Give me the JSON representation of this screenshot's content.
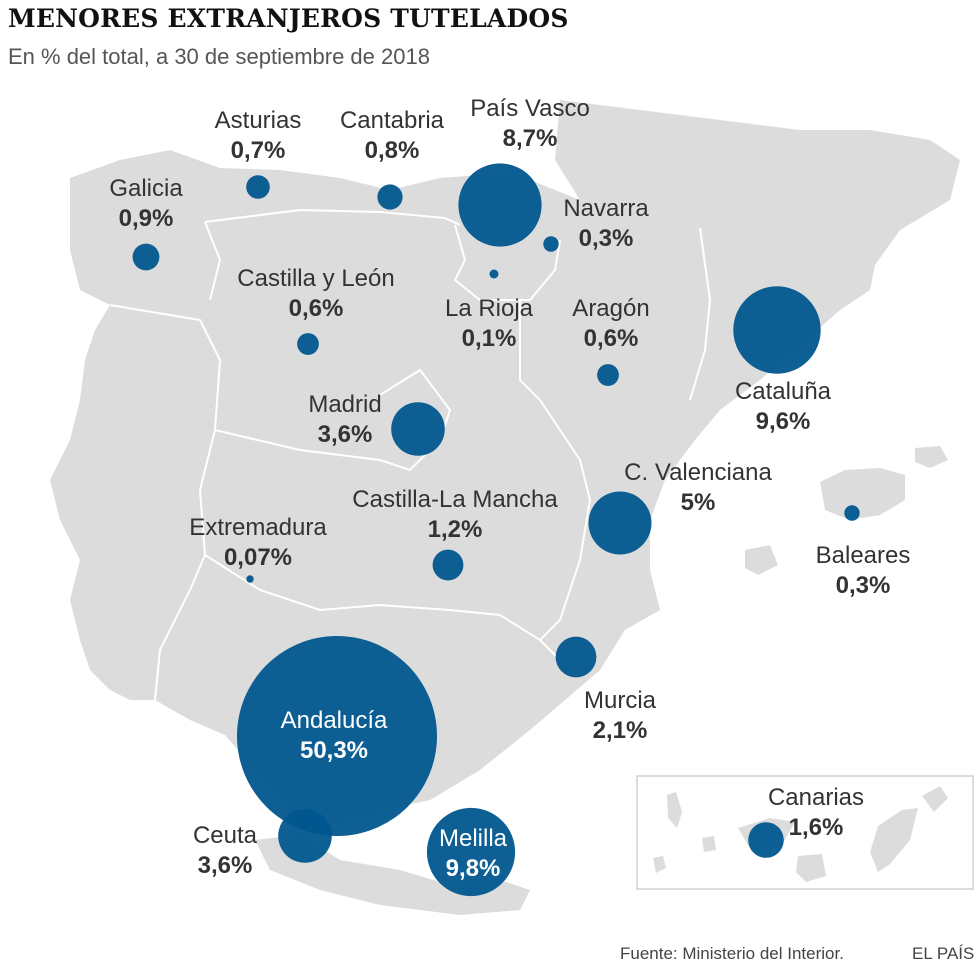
{
  "header": {
    "title": "MENORES EXTRANJEROS TUTELADOS",
    "subtitle": "En % del total, a 30 de septiembre de 2018"
  },
  "colors": {
    "land": "#dcdcdc",
    "border": "#ffffff",
    "bubble": "#00568e",
    "bubble_dark": "#0a3d66",
    "inset_border": "#d0d0d0"
  },
  "regions": [
    {
      "id": "galicia",
      "name": "Galicia",
      "value": "0,9%",
      "percent": 0.9
    },
    {
      "id": "asturias",
      "name": "Asturias",
      "value": "0,7%",
      "percent": 0.7
    },
    {
      "id": "cantabria",
      "name": "Cantabria",
      "value": "0,8%",
      "percent": 0.8
    },
    {
      "id": "pais-vasco",
      "name": "País Vasco",
      "value": "8,7%",
      "percent": 8.7
    },
    {
      "id": "navarra",
      "name": "Navarra",
      "value": "0,3%",
      "percent": 0.3
    },
    {
      "id": "castilla-y-leon",
      "name": "Castilla y León",
      "value": "0,6%",
      "percent": 0.6
    },
    {
      "id": "la-rioja",
      "name": "La Rioja",
      "value": "0,1%",
      "percent": 0.1
    },
    {
      "id": "aragon",
      "name": "Aragón",
      "value": "0,6%",
      "percent": 0.6
    },
    {
      "id": "cataluna",
      "name": "Cataluña",
      "value": "9,6%",
      "percent": 9.6
    },
    {
      "id": "madrid",
      "name": "Madrid",
      "value": "3,6%",
      "percent": 3.6
    },
    {
      "id": "c-valenciana",
      "name": "C. Valenciana",
      "value": "5%",
      "percent": 5
    },
    {
      "id": "castilla-la-mancha",
      "name": "Castilla-La Mancha",
      "value": "1,2%",
      "percent": 1.2
    },
    {
      "id": "extremadura",
      "name": "Extremadura",
      "value": "0,07%",
      "percent": 0.07
    },
    {
      "id": "baleares",
      "name": "Baleares",
      "value": "0,3%",
      "percent": 0.3
    },
    {
      "id": "murcia",
      "name": "Murcia",
      "value": "2,1%",
      "percent": 2.1
    },
    {
      "id": "andalucia",
      "name": "Andalucía",
      "value": "50,3%",
      "percent": 50.3
    },
    {
      "id": "ceuta",
      "name": "Ceuta",
      "value": "3,6%",
      "percent": 3.6
    },
    {
      "id": "melilla",
      "name": "Melilla",
      "value": "9,8%",
      "percent": 9.8
    },
    {
      "id": "canarias",
      "name": "Canarias",
      "value": "1,6%",
      "percent": 1.6
    }
  ],
  "footer": {
    "source": "Fuente: Ministerio del Interior.",
    "brand": "EL PAÍS"
  }
}
